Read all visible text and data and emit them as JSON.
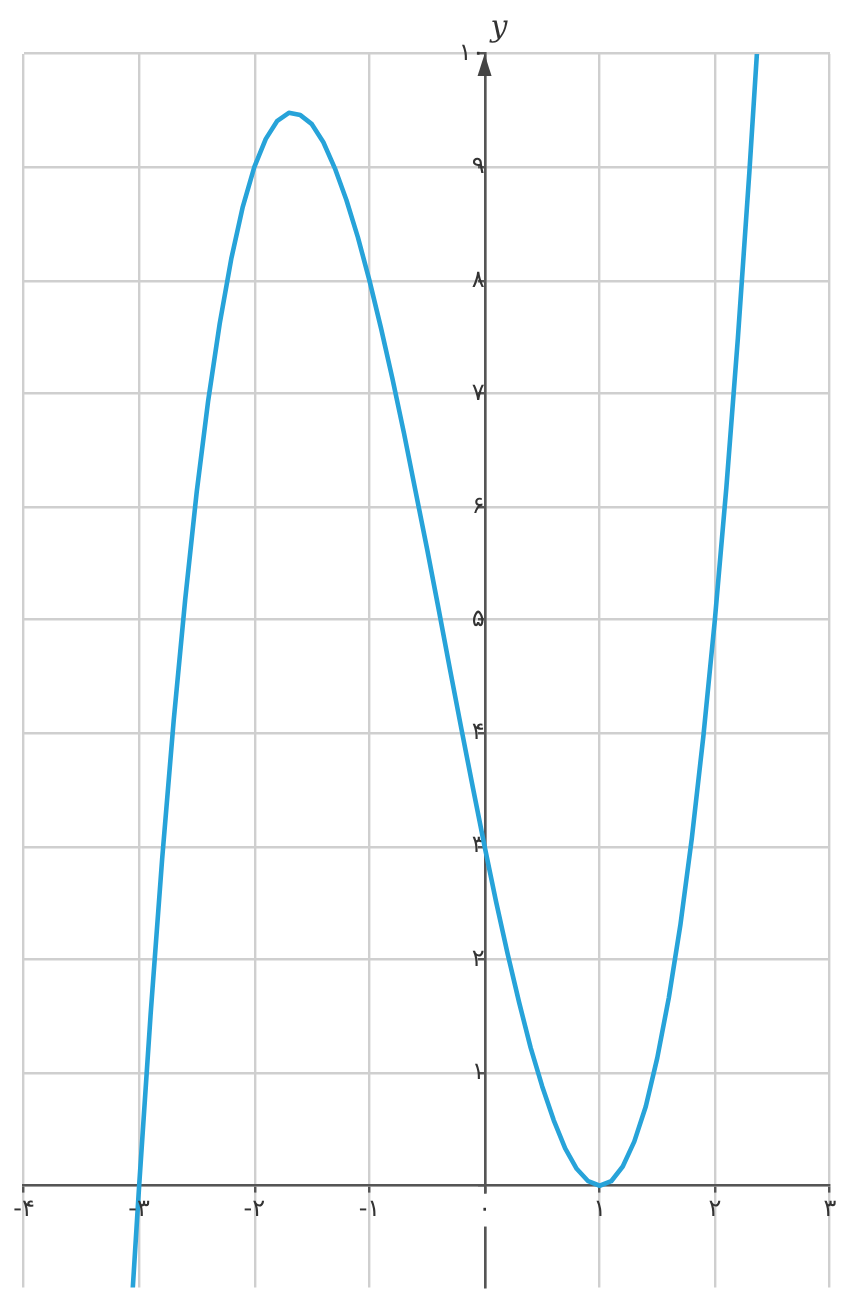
{
  "chart_data": {
    "type": "line",
    "ylabel": "y",
    "x": [
      -3.055,
      -3,
      -2.9,
      -2.8,
      -2.7,
      -2.6,
      -2.5,
      -2.4,
      -2.3,
      -2.2,
      -2.1,
      -2,
      -1.9,
      -1.8,
      -1.7,
      -1.6,
      -1.5,
      -1.4,
      -1.3,
      -1.2,
      -1.1,
      -1,
      -0.9,
      -0.8,
      -0.7,
      -0.6,
      -0.5,
      -0.4,
      -0.3,
      -0.2,
      -0.1,
      0,
      0.1,
      0.2,
      0.3,
      0.4,
      0.5,
      0.6,
      0.7,
      0.8,
      0.9,
      1,
      1.1,
      1.2,
      1.3,
      1.4,
      1.5,
      1.6,
      1.7,
      1.8,
      1.9,
      2,
      2.1,
      2.2,
      2.3,
      2.365
    ],
    "values": [
      -0.9,
      0,
      1.52,
      2.89,
      4.11,
      5.18,
      6.13,
      6.94,
      7.62,
      8.19,
      8.65,
      9,
      9.25,
      9.41,
      9.48,
      9.46,
      9.38,
      9.22,
      8.99,
      8.71,
      8.38,
      8,
      7.58,
      7.13,
      6.65,
      6.14,
      5.63,
      5.1,
      4.56,
      4.03,
      3.51,
      3,
      2.51,
      2.05,
      1.62,
      1.22,
      0.88,
      0.58,
      0.33,
      0.15,
      0.04,
      0,
      0.04,
      0.17,
      0.39,
      0.7,
      1.13,
      1.66,
      2.3,
      3.07,
      3.97,
      5,
      6.17,
      7.49,
      8.96,
      10
    ],
    "color": "#27a3d9",
    "marker": "none",
    "grid": true,
    "xlim": [
      -4,
      3
    ],
    "ylim": [
      -0.9,
      10
    ],
    "xticks": [
      {
        "value": -4,
        "label": "-۴"
      },
      {
        "value": -3,
        "label": "-۳"
      },
      {
        "value": -2,
        "label": "-۲"
      },
      {
        "value": -1,
        "label": "-۱"
      },
      {
        "value": 0,
        "label": "۰"
      },
      {
        "value": 1,
        "label": "۱"
      },
      {
        "value": 2,
        "label": "۲"
      },
      {
        "value": 3,
        "label": "۳"
      }
    ],
    "yticks": [
      {
        "value": 0,
        "label": null
      },
      {
        "value": 1,
        "label": "۱"
      },
      {
        "value": 2,
        "label": "۲"
      },
      {
        "value": 3,
        "label": "۳"
      },
      {
        "value": 4,
        "label": "۴"
      },
      {
        "value": 5,
        "label": "۵"
      },
      {
        "value": 6,
        "label": "۶"
      },
      {
        "value": 7,
        "label": "۷"
      },
      {
        "value": 8,
        "label": "۸"
      },
      {
        "value": 9,
        "label": "۹"
      },
      {
        "value": 10,
        "label": "۱۰"
      }
    ]
  }
}
